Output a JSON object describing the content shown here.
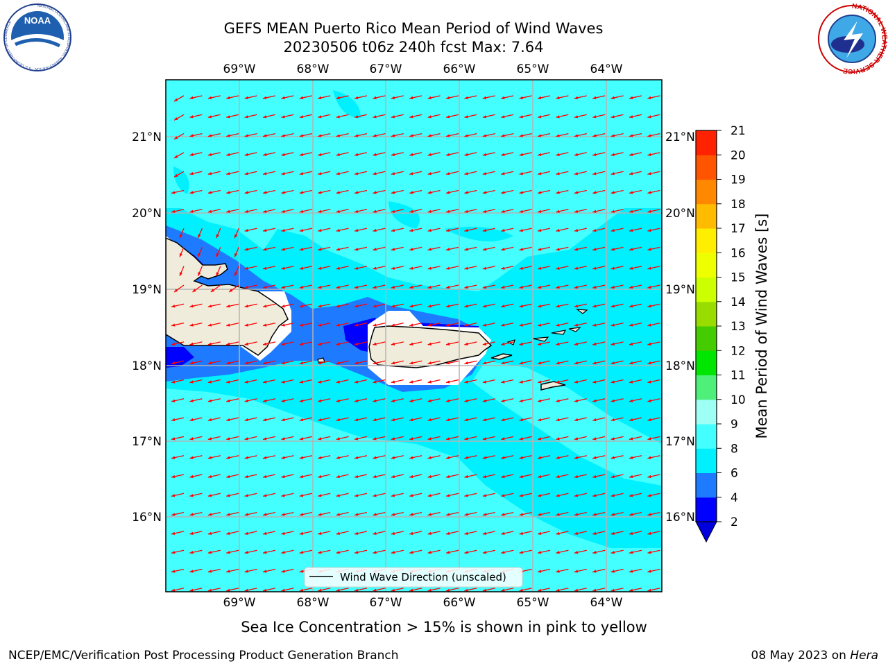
{
  "header": {
    "title_line1": "GEFS MEAN Puerto Rico Mean Period of Wind Waves",
    "title_line2": "20230506 t06z 240h fcst   Max: 7.64"
  },
  "logos": {
    "noaa": {
      "text": "NOAA",
      "ring_text": "NATIONAL OCEANIC AND ATMOSPHERIC ADMINISTRATION · U.S. DEPARTMENT OF COMMERCE"
    },
    "nws": {
      "ring_text": "NATIONAL WEATHER SERVICE"
    }
  },
  "map": {
    "lon_labels": [
      "69°W",
      "68°W",
      "67°W",
      "66°W",
      "65°W",
      "64°W"
    ],
    "lat_labels": [
      "21°N",
      "20°N",
      "19°N",
      "18°N",
      "17°N",
      "16°N"
    ],
    "arrow_color": "#ff0000",
    "legend_label": "Wind Wave Direction (unscaled)"
  },
  "colorbar": {
    "label": "Mean Period of Wind Waves [s]",
    "ticks": [
      "2",
      "4",
      "6",
      "8",
      "9",
      "10",
      "11",
      "12",
      "13",
      "14",
      "15",
      "16",
      "17",
      "18",
      "19",
      "20",
      "21"
    ],
    "colors": [
      "#0000ff",
      "#1e7bff",
      "#00f0ff",
      "#44ffff",
      "#9efff5",
      "#4ef07a",
      "#00e600",
      "#44cc00",
      "#99dd00",
      "#ccff00",
      "#eeff00",
      "#ffee00",
      "#ffbb00",
      "#ff8800",
      "#ff5500",
      "#ff2200",
      "#ff0000"
    ],
    "under_color": "#0000dd"
  },
  "footer": {
    "sea_ice_note": "Sea Ice Concentration > 15% is shown in pink to yellow",
    "branch": "NCEP/EMC/Verification Post Processing Product Generation Branch",
    "date": "08 May 2023 on ",
    "host": "Hera"
  },
  "palette": {
    "ocean_light": "#44ffff",
    "ocean_mid": "#00f0ff",
    "ocean_blue": "#1e7bff",
    "ocean_dark": "#0000ff",
    "land": "#efecdc",
    "grid": "#b3b3b3"
  }
}
